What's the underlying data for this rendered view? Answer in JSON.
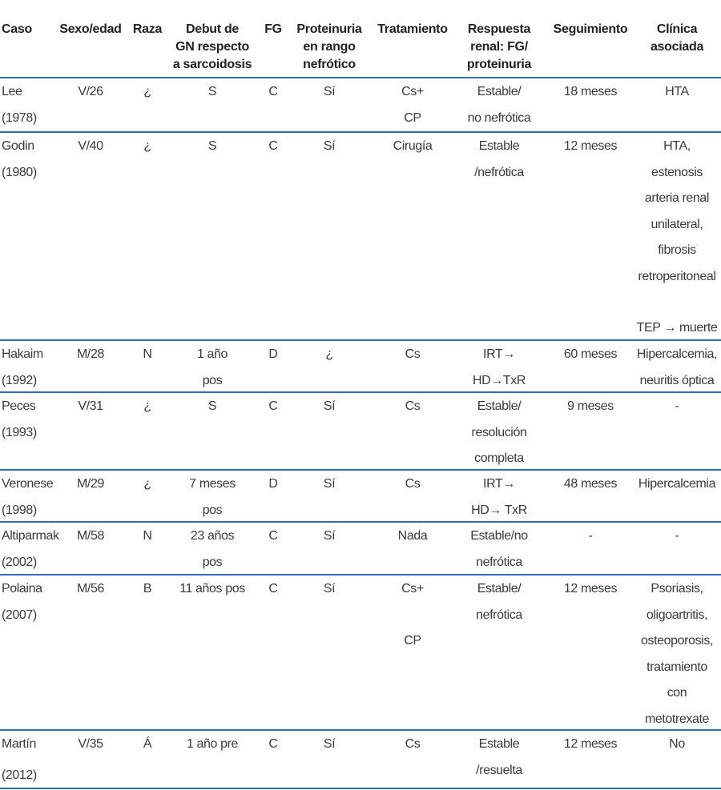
{
  "table": {
    "header": [
      [
        "Caso"
      ],
      [
        "Sexo/edad"
      ],
      [
        "Raza"
      ],
      [
        "Debut de",
        "GN respecto",
        "a sarcoidosis"
      ],
      [
        "FG"
      ],
      [
        "Proteinuria",
        "en rango",
        "nefrótico"
      ],
      [
        "Tratamiento"
      ],
      [
        "Respuesta",
        "renal: FG/",
        "proteinuria"
      ],
      [
        "Seguimiento"
      ],
      [
        "Clínica",
        "asociada"
      ]
    ],
    "rows": [
      [
        [
          "Lee",
          "(1978)"
        ],
        [
          "V/26"
        ],
        [
          "¿"
        ],
        [
          "S"
        ],
        [
          "C"
        ],
        [
          "Sí"
        ],
        [
          "Cs+",
          "CP"
        ],
        [
          "Estable/",
          "no nefrótica"
        ],
        [
          "18 meses"
        ],
        [
          "HTA"
        ]
      ],
      [
        [
          "Godin",
          "(1980)"
        ],
        [
          "V/40"
        ],
        [
          "¿"
        ],
        [
          "S"
        ],
        [
          "C"
        ],
        [
          "Sí"
        ],
        [
          "Cirugía"
        ],
        [
          "Estable",
          "/nefrótica"
        ],
        [
          "12 meses"
        ],
        [
          "HTA,",
          "estenosis",
          "arteria renal",
          "unilateral,",
          "fibrosis",
          "retroperitoneal",
          "TEP → muerte"
        ]
      ],
      [
        [
          "Hakaim",
          "(1992)"
        ],
        [
          "M/28"
        ],
        [
          "N"
        ],
        [
          "1 año",
          "pos"
        ],
        [
          "D"
        ],
        [
          "¿"
        ],
        [
          "Cs"
        ],
        [
          "IRT→",
          "HD→TxR"
        ],
        [
          "60 meses"
        ],
        [
          "Hipercalcemia,",
          "neuritis óptica"
        ]
      ],
      [
        [
          "Peces",
          "(1993)"
        ],
        [
          "V/31"
        ],
        [
          "¿"
        ],
        [
          "S"
        ],
        [
          "C"
        ],
        [
          "Sí"
        ],
        [
          "Cs"
        ],
        [
          "Estable/",
          "resolución",
          "completa"
        ],
        [
          "9 meses"
        ],
        [
          "-"
        ]
      ],
      [
        [
          "Veronese",
          "(1998)"
        ],
        [
          "M/29"
        ],
        [
          "¿"
        ],
        [
          "7 meses",
          "pos"
        ],
        [
          "D"
        ],
        [
          "Sí"
        ],
        [
          "Cs"
        ],
        [
          "IRT→",
          "HD→ TxR"
        ],
        [
          "48 meses"
        ],
        [
          "Hipercalcemia"
        ]
      ],
      [
        [
          "Altiparmak",
          "(2002)"
        ],
        [
          "M/58"
        ],
        [
          "N"
        ],
        [
          "23 años",
          "pos"
        ],
        [
          "C"
        ],
        [
          "Sí"
        ],
        [
          "Nada"
        ],
        [
          "Estable/no",
          "nefrótica"
        ],
        [
          "-"
        ],
        [
          "-"
        ]
      ],
      [
        [
          "Polaina",
          "(2007)"
        ],
        [
          "M/56"
        ],
        [
          "B"
        ],
        [
          "11 años pos"
        ],
        [
          "C"
        ],
        [
          "Sí"
        ],
        [
          "Cs+",
          "CP"
        ],
        [
          "Estable/",
          "nefrótica"
        ],
        [
          "12 meses"
        ],
        [
          "Psoriasis,",
          "oligoartritis,",
          "osteoporosis,",
          "tratamiento",
          "con",
          "metotrexate"
        ]
      ],
      [
        [
          "Martín",
          "(2012)"
        ],
        [
          "V/35"
        ],
        [
          "Á"
        ],
        [
          "1 año pre"
        ],
        [
          "C"
        ],
        [
          "Sí"
        ],
        [
          "Cs"
        ],
        [
          "Estable",
          "/resuelta"
        ],
        [
          "12 meses"
        ],
        [
          "No"
        ]
      ]
    ]
  }
}
